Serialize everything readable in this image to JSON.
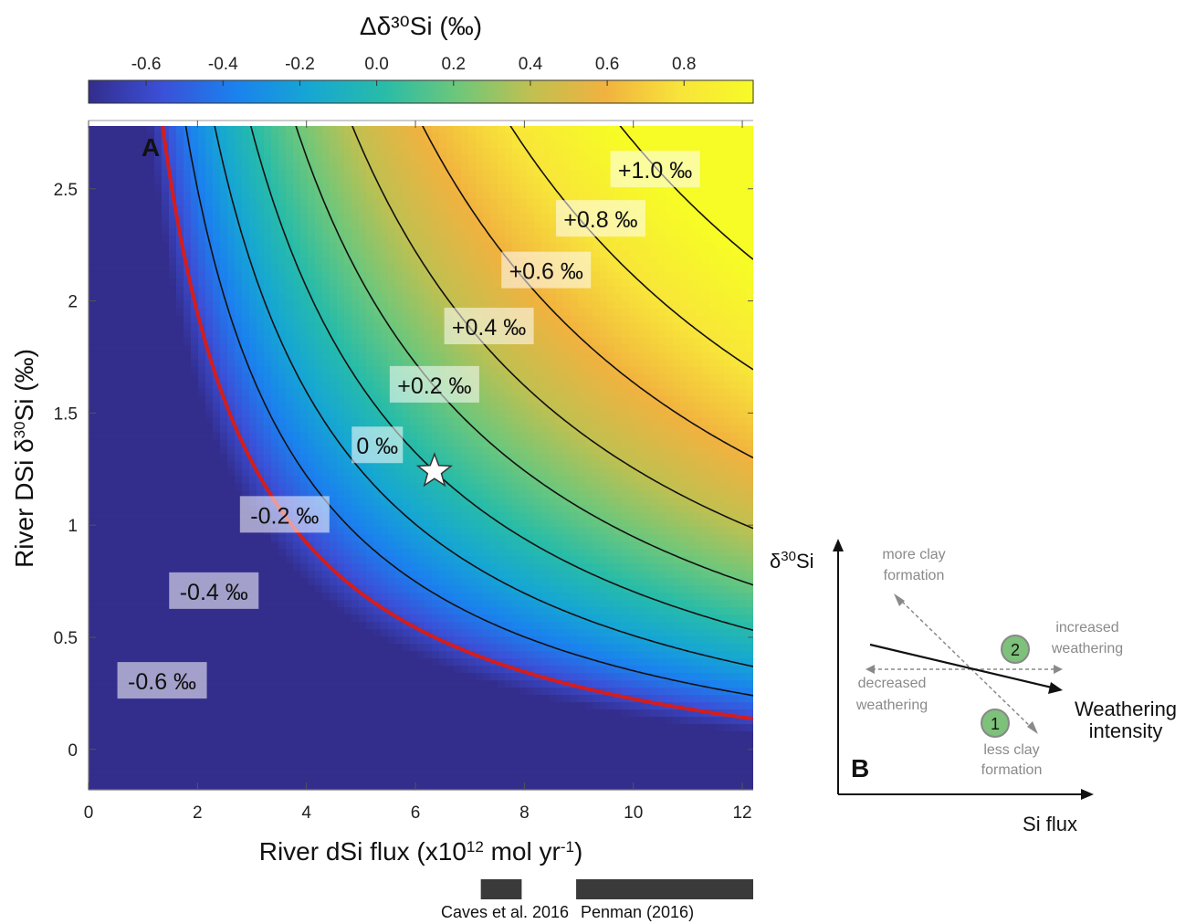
{
  "chart_data": [
    {
      "type": "heatmap",
      "panel": "A",
      "colorbar": {
        "title": "Δδ³⁰Si (‰)",
        "ticks": [
          -0.6,
          -0.4,
          -0.2,
          0.0,
          0.2,
          0.4,
          0.6,
          0.8
        ],
        "tick_labels": [
          "-0.6",
          "-0.4",
          "-0.2",
          "0.0",
          "0.2",
          "0.4",
          "0.6",
          "0.8"
        ],
        "range": [
          -0.75,
          0.98
        ],
        "colors": [
          "#332d8c",
          "#3b50d8",
          "#1a82ee",
          "#16a7d2",
          "#28bca8",
          "#6ec77a",
          "#c1c050",
          "#f1b23f",
          "#f8e43a",
          "#f7fb26"
        ]
      },
      "xlabel": "River dSi flux (x10",
      "xlabel_sup": "12",
      "xlabel_mid": " mol yr",
      "xlabel_sup2": "-1",
      "xlabel_end": ")",
      "ylabel": "River DSi δ",
      "ylabel_sup": "30",
      "ylabel_end": "Si (‰)",
      "xlim": [
        0,
        12.2
      ],
      "ylim": [
        -0.18,
        2.78
      ],
      "xticks": [
        0,
        2,
        4,
        6,
        8,
        10,
        12
      ],
      "xtick_labels": [
        "0",
        "2",
        "4",
        "6",
        "8",
        "10",
        "12"
      ],
      "yticks": [
        0,
        0.5,
        1,
        1.5,
        2,
        2.5
      ],
      "ytick_labels": [
        "0",
        "0.5",
        "1",
        "1.5",
        "2",
        "2.5"
      ],
      "model": {
        "x0": 6.35,
        "y0": 1.24,
        "c_offset": 0.3
      },
      "contours": [
        {
          "value": -0.6,
          "label": "-0.6 ‰",
          "highlight": true,
          "label_at": [
            1.35,
            0.3
          ]
        },
        {
          "value": -0.4,
          "label": "-0.4 ‰",
          "label_at": [
            2.3,
            0.7
          ]
        },
        {
          "value": -0.2,
          "label": "-0.2 ‰",
          "label_at": [
            3.6,
            1.04
          ]
        },
        {
          "value": 0.0,
          "label": "0 ‰",
          "label_at": [
            5.3,
            1.35
          ]
        },
        {
          "value": 0.2,
          "label": "+0.2 ‰",
          "label_at": [
            6.35,
            1.62
          ]
        },
        {
          "value": 0.4,
          "label": "+0.4 ‰",
          "label_at": [
            7.35,
            1.88
          ]
        },
        {
          "value": 0.6,
          "label": "+0.6 ‰",
          "label_at": [
            8.4,
            2.13
          ]
        },
        {
          "value": 0.8,
          "label": "+0.8 ‰",
          "label_at": [
            9.4,
            2.36
          ]
        },
        {
          "value": 1.0,
          "label": "+1.0 ‰",
          "label_at": [
            10.4,
            2.58
          ]
        }
      ],
      "marker": {
        "type": "star",
        "x": 6.35,
        "y": 1.24
      },
      "reference_ranges": [
        {
          "label": "Caves et al. 2016",
          "x_range": [
            7.2,
            7.95
          ]
        },
        {
          "label": "Penman (2016)",
          "x_range": [
            8.95,
            12.2
          ]
        }
      ]
    },
    {
      "type": "diagram",
      "panel": "B",
      "ylabel": "δ",
      "ylabel_sup": "30",
      "ylabel_end": "Si",
      "xlabel": "Si flux",
      "trend_label_line1": "Weathering",
      "trend_label_line2": "intensity",
      "annotations": {
        "more_clay_1": "more clay",
        "more_clay_2": "formation",
        "less_clay_1": "less clay",
        "less_clay_2": "formation",
        "increased_1": "increased",
        "increased_2": "weathering",
        "decreased_1": "decreased",
        "decreased_2": "weathering",
        "marker_1": "1",
        "marker_2": "2"
      },
      "marker_color": "#7dc17a"
    }
  ]
}
